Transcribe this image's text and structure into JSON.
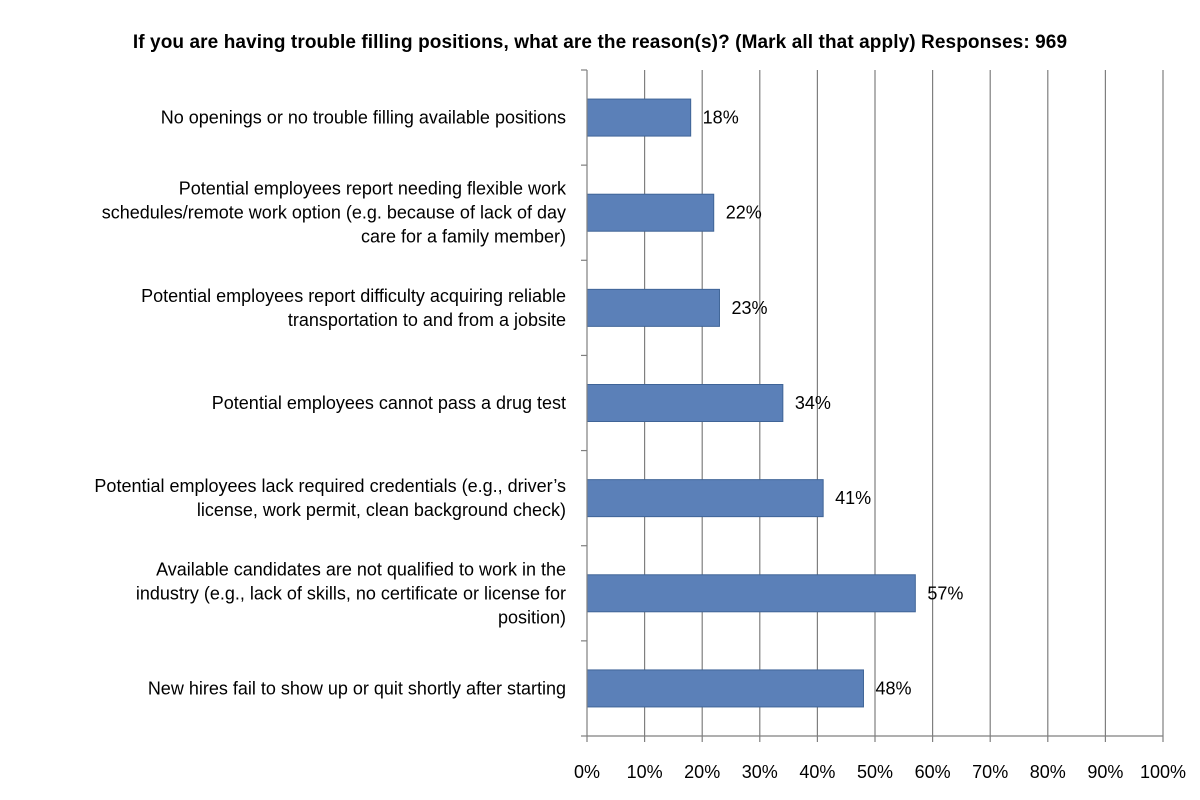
{
  "chart_data": {
    "type": "bar",
    "orientation": "horizontal",
    "title": "If you are having trouble filling positions, what are the reason(s)? (Mark all that apply) Responses: 969",
    "categories": [
      "No openings or no trouble filling available positions",
      "Potential employees report needing flexible work schedules/remote work option (e.g. because of lack of day care for a family member)",
      "Potential employees report difficulty acquiring reliable transportation to and from a jobsite",
      "Potential employees cannot pass a drug test",
      "Potential employees lack required credentials (e.g., driver’s license, work permit, clean background check)",
      "Available candidates are not qualified to work in the industry (e.g., lack of skills, no certificate or license for position)",
      "New hires fail to show up or quit shortly after starting"
    ],
    "category_lines": [
      [
        "No openings or no trouble filling available positions"
      ],
      [
        "Potential employees report needing flexible work",
        "schedules/remote work option (e.g. because of lack of day",
        "care for a family member)"
      ],
      [
        "Potential employees report difficulty acquiring reliable",
        "transportation to and from a jobsite"
      ],
      [
        "Potential employees cannot pass a drug test"
      ],
      [
        "Potential employees lack required credentials (e.g., driver’s",
        "license, work permit, clean background check)"
      ],
      [
        "Available candidates are not qualified to work in the",
        "industry (e.g., lack of skills, no certificate or license for",
        "position)"
      ],
      [
        "New hires fail to show up or quit shortly after starting"
      ]
    ],
    "values": [
      18,
      22,
      23,
      34,
      41,
      57,
      48
    ],
    "data_labels": [
      "18%",
      "22%",
      "23%",
      "34%",
      "41%",
      "57%",
      "48%"
    ],
    "xlim": [
      0,
      100
    ],
    "x_ticks": [
      0,
      10,
      20,
      30,
      40,
      50,
      60,
      70,
      80,
      90,
      100
    ],
    "x_tick_labels": [
      "0%",
      "10%",
      "20%",
      "30%",
      "40%",
      "50%",
      "60%",
      "70%",
      "80%",
      "90%",
      "100%"
    ],
    "grid": "vertical",
    "legend": "none",
    "colors": {
      "bar_fill": "#5b80b8",
      "bar_stroke": "#3f6497",
      "gridline": "#7f7f7f",
      "axis": "#7f7f7f"
    }
  }
}
